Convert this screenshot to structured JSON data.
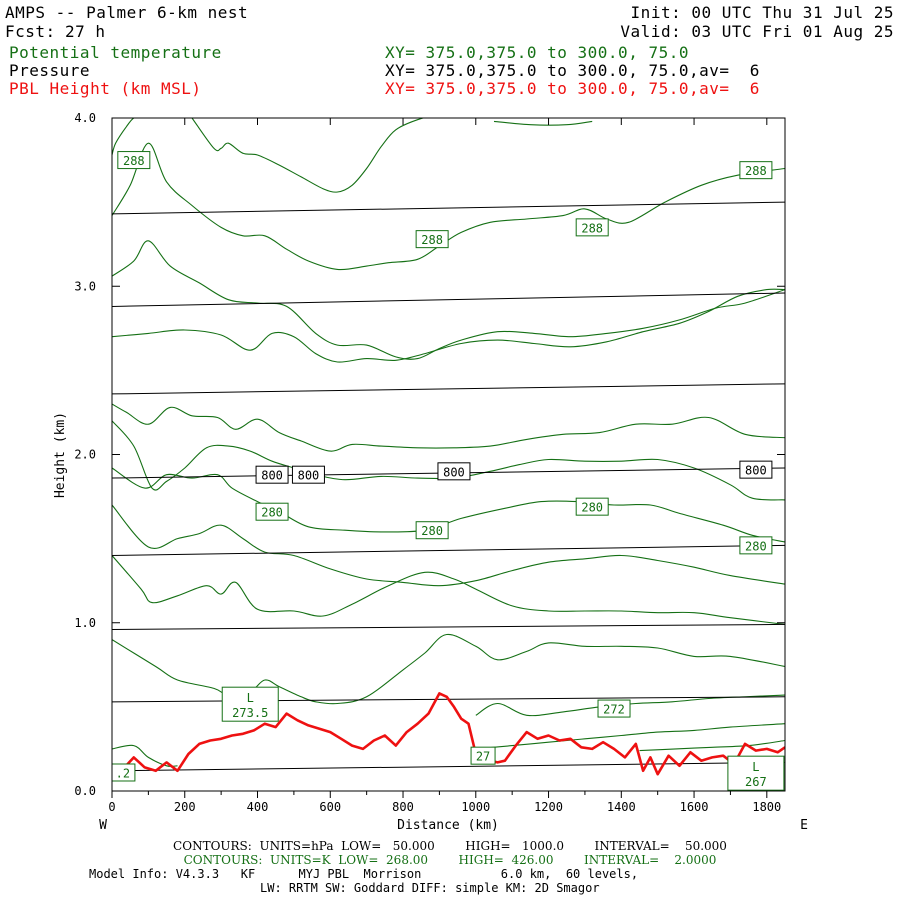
{
  "header": {
    "title": "AMPS -- Palmer 6-km nest",
    "fcst_label": "Fcst:",
    "fcst_value": "27 h",
    "init": "Init: 00 UTC Thu 31 Jul 25",
    "valid": "Valid: 03 UTC Fri 01 Aug 25",
    "field1": "Potential temperature",
    "field1_xy": "XY= 375.0,375.0 to 300.0, 75.0",
    "field2": "Pressure",
    "field2_xy": "XY= 375.0,375.0 to 300.0, 75.0,av=  6",
    "field3": "PBL Height (km MSL)",
    "field3_xy": "XY= 375.0,375.0 to 300.0, 75.0,av=  6"
  },
  "colors": {
    "theta": "#157015",
    "pressure": "#000000",
    "pbl": "#ee1111"
  },
  "chart_data": {
    "type": "line",
    "xlabel": "Distance (km)",
    "ylabel": "Height (km)",
    "xlim": [
      0,
      1850
    ],
    "ylim": [
      0.0,
      4.0
    ],
    "x_ticks": [
      "0",
      "200",
      "400",
      "600",
      "800",
      "1000",
      "1200",
      "1400",
      "1600",
      "1800"
    ],
    "y_ticks": [
      "0.0",
      "1.0",
      "2.0",
      "3.0",
      "4.0"
    ],
    "left_end_label": "W",
    "right_end_label": "E",
    "grid": false,
    "pressure_isobars": [
      {
        "y": [
          0.12,
          0.17
        ]
      },
      {
        "y": [
          0.53,
          0.56
        ]
      },
      {
        "y": [
          0.96,
          0.99
        ]
      },
      {
        "y": [
          1.4,
          1.46
        ]
      },
      {
        "y": [
          1.86,
          1.92
        ]
      },
      {
        "y": [
          2.36,
          2.42
        ]
      },
      {
        "y": [
          2.88,
          2.96
        ]
      },
      {
        "y": [
          3.43,
          3.5
        ]
      }
    ],
    "theta_contours": [
      {
        "x": [
          0,
          120,
          180,
          280,
          320,
          380,
          420,
          460,
          520,
          560,
          620,
          700,
          800,
          860,
          920,
          1000,
          1060,
          1140,
          1200,
          1300,
          1400,
          1500,
          1600,
          1700,
          1850
        ],
        "y": [
          0.9,
          0.74,
          0.66,
          0.61,
          0.57,
          0.59,
          0.66,
          0.62,
          0.56,
          0.53,
          0.52,
          0.56,
          0.72,
          0.82,
          0.93,
          0.86,
          0.78,
          0.83,
          0.88,
          0.86,
          0.86,
          0.85,
          0.8,
          0.8,
          0.74
        ]
      },
      {
        "x": [
          0,
          80,
          110,
          180,
          260,
          300,
          340,
          400,
          500,
          580,
          660,
          760,
          860,
          940,
          1000,
          1100,
          1200,
          1300,
          1400,
          1500,
          1600,
          1700,
          1850
        ],
        "y": [
          1.4,
          1.2,
          1.12,
          1.16,
          1.22,
          1.17,
          1.24,
          1.08,
          1.07,
          1.04,
          1.11,
          1.22,
          1.3,
          1.26,
          1.2,
          1.1,
          1.07,
          1.07,
          1.07,
          1.06,
          1.06,
          1.03,
          0.99
        ]
      },
      {
        "x": [
          0,
          100,
          180,
          240,
          300,
          360,
          420,
          500,
          600,
          700,
          800,
          900,
          1000,
          1100,
          1200,
          1300,
          1400,
          1500,
          1600,
          1700,
          1850
        ],
        "y": [
          1.7,
          1.45,
          1.5,
          1.53,
          1.58,
          1.5,
          1.42,
          1.4,
          1.32,
          1.26,
          1.24,
          1.22,
          1.25,
          1.31,
          1.36,
          1.38,
          1.4,
          1.37,
          1.33,
          1.28,
          1.23
        ]
      },
      {
        "x": [
          0,
          90,
          150,
          220,
          290,
          330,
          400,
          460,
          540,
          640,
          740,
          860,
          960,
          1080,
          1180,
          1280,
          1380,
          1480,
          1560,
          1680,
          1760,
          1850
        ],
        "y": [
          1.92,
          1.8,
          1.88,
          1.86,
          1.88,
          1.8,
          1.72,
          1.66,
          1.57,
          1.55,
          1.54,
          1.55,
          1.62,
          1.68,
          1.72,
          1.72,
          1.7,
          1.7,
          1.65,
          1.58,
          1.52,
          1.48
        ]
      },
      {
        "x": [
          0,
          60,
          110,
          150,
          200,
          260,
          320,
          380,
          440,
          500,
          560,
          640,
          740,
          840,
          940,
          1040,
          1120,
          1200,
          1300,
          1400,
          1500,
          1600,
          1700,
          1760,
          1850
        ],
        "y": [
          2.2,
          2.05,
          1.8,
          1.84,
          1.92,
          2.04,
          2.05,
          2.02,
          1.96,
          1.92,
          1.88,
          1.85,
          1.87,
          1.86,
          1.86,
          1.9,
          1.94,
          1.97,
          1.96,
          1.96,
          1.97,
          1.92,
          1.82,
          1.74,
          1.73
        ]
      },
      {
        "x": [
          0,
          40,
          100,
          160,
          220,
          290,
          340,
          400,
          460,
          520,
          600,
          660,
          740,
          840,
          940,
          1040,
          1140,
          1240,
          1340,
          1440,
          1540,
          1640,
          1740,
          1850
        ],
        "y": [
          2.3,
          2.25,
          2.18,
          2.28,
          2.23,
          2.22,
          2.15,
          2.21,
          2.13,
          2.08,
          2.02,
          2.06,
          2.05,
          2.04,
          2.04,
          2.05,
          2.09,
          2.12,
          2.13,
          2.18,
          2.18,
          2.22,
          2.12,
          2.1
        ]
      },
      {
        "x": [
          0,
          100,
          200,
          300,
          380,
          440,
          500,
          560,
          620,
          700,
          780,
          860,
          960,
          1060,
          1160,
          1260,
          1360,
          1460,
          1560,
          1640,
          1720,
          1800,
          1850
        ],
        "y": [
          2.7,
          2.72,
          2.74,
          2.71,
          2.62,
          2.72,
          2.7,
          2.6,
          2.55,
          2.57,
          2.56,
          2.6,
          2.66,
          2.68,
          2.66,
          2.64,
          2.67,
          2.73,
          2.78,
          2.85,
          2.94,
          2.98,
          2.98
        ]
      },
      {
        "x": [
          0,
          60,
          100,
          160,
          240,
          320,
          400,
          480,
          560,
          620,
          700,
          780,
          840,
          900,
          960,
          1060,
          1160,
          1260,
          1360,
          1460,
          1560,
          1660,
          1740,
          1850
        ],
        "y": [
          3.06,
          3.15,
          3.27,
          3.12,
          3.02,
          2.92,
          2.9,
          2.88,
          2.72,
          2.65,
          2.65,
          2.58,
          2.57,
          2.63,
          2.68,
          2.73,
          2.72,
          2.7,
          2.72,
          2.75,
          2.8,
          2.87,
          2.9,
          2.98
        ]
      },
      {
        "x": [
          0,
          50,
          100,
          150,
          220,
          300,
          360,
          420,
          480,
          540,
          620,
          700,
          760,
          840,
          900,
          960,
          1040,
          1140,
          1240,
          1300,
          1360,
          1420,
          1520,
          1620,
          1720,
          1850
        ],
        "y": [
          3.42,
          3.6,
          3.85,
          3.62,
          3.48,
          3.35,
          3.3,
          3.3,
          3.22,
          3.15,
          3.1,
          3.12,
          3.14,
          3.16,
          3.24,
          3.32,
          3.38,
          3.4,
          3.42,
          3.46,
          3.4,
          3.38,
          3.5,
          3.6,
          3.66,
          3.7
        ]
      },
      {
        "x": [
          220,
          280,
          300,
          320,
          360,
          400,
          460,
          520,
          580,
          620,
          660,
          700,
          740,
          780,
          840,
          900,
          960
        ],
        "y": [
          4.0,
          3.82,
          3.82,
          3.85,
          3.79,
          3.78,
          3.72,
          3.65,
          3.58,
          3.56,
          3.6,
          3.7,
          3.83,
          3.93,
          3.99,
          4.02,
          4.02
        ]
      },
      {
        "x": [
          1050,
          1150,
          1250,
          1320
        ],
        "y": [
          3.98,
          3.96,
          3.96,
          3.98
        ]
      },
      {
        "x": [
          0,
          10,
          40,
          60,
          80,
          110,
          180
        ],
        "y": [
          3.78,
          3.85,
          3.95,
          4.0,
          4.0,
          4.0,
          4.0
        ]
      },
      {
        "x": [
          0,
          60,
          100,
          150,
          180
        ],
        "y": [
          0.25,
          0.27,
          0.2,
          0.15,
          0.15
        ]
      },
      {
        "x": [
          1000,
          1060,
          1140,
          1240,
          1340,
          1440,
          1540,
          1640,
          1740,
          1850
        ],
        "y": [
          0.45,
          0.52,
          0.45,
          0.47,
          0.5,
          0.52,
          0.53,
          0.55,
          0.56,
          0.57
        ]
      },
      {
        "x": [
          1000,
          1100,
          1200,
          1300,
          1400,
          1500,
          1600,
          1700,
          1850
        ],
        "y": [
          0.25,
          0.27,
          0.29,
          0.31,
          0.33,
          0.35,
          0.36,
          0.38,
          0.4
        ]
      },
      {
        "x": [
          1450,
          1550,
          1650,
          1750,
          1850
        ],
        "y": [
          0.24,
          0.25,
          0.26,
          0.27,
          0.3
        ]
      }
    ],
    "pbl_height_x": [
      0,
      30,
      60,
      90,
      120,
      150,
      180,
      210,
      240,
      270,
      300,
      330,
      360,
      390,
      420,
      450,
      480,
      510,
      540,
      570,
      600,
      630,
      660,
      690,
      720,
      750,
      780,
      810,
      840,
      870,
      900,
      920,
      940,
      960,
      980,
      1000,
      1020,
      1040,
      1060,
      1080,
      1110,
      1140,
      1170,
      1200,
      1230,
      1260,
      1290,
      1320,
      1350,
      1380,
      1410,
      1440,
      1460,
      1480,
      1500,
      1530,
      1560,
      1590,
      1620,
      1650,
      1680,
      1710,
      1740,
      1770,
      1800,
      1830,
      1850
    ],
    "pbl_height_y": [
      0.15,
      0.13,
      0.2,
      0.14,
      0.12,
      0.17,
      0.12,
      0.22,
      0.28,
      0.3,
      0.31,
      0.33,
      0.34,
      0.36,
      0.4,
      0.38,
      0.46,
      0.42,
      0.39,
      0.37,
      0.35,
      0.31,
      0.27,
      0.25,
      0.3,
      0.33,
      0.27,
      0.35,
      0.4,
      0.46,
      0.58,
      0.56,
      0.5,
      0.43,
      0.4,
      0.22,
      0.2,
      0.18,
      0.17,
      0.18,
      0.27,
      0.35,
      0.31,
      0.33,
      0.3,
      0.31,
      0.26,
      0.25,
      0.29,
      0.25,
      0.2,
      0.28,
      0.12,
      0.2,
      0.1,
      0.21,
      0.15,
      0.23,
      0.18,
      0.2,
      0.21,
      0.16,
      0.28,
      0.24,
      0.25,
      0.23,
      0.26
    ],
    "contour_labels": [
      {
        "text": "288",
        "x": 60,
        "y": 3.75,
        "kind": "theta"
      },
      {
        "text": "288",
        "x": 880,
        "y": 3.28,
        "kind": "theta"
      },
      {
        "text": "288",
        "x": 1320,
        "y": 3.35,
        "kind": "theta"
      },
      {
        "text": "288",
        "x": 1770,
        "y": 3.69,
        "kind": "theta"
      },
      {
        "text": "280",
        "x": 440,
        "y": 1.66,
        "kind": "theta"
      },
      {
        "text": "280",
        "x": 880,
        "y": 1.55,
        "kind": "theta"
      },
      {
        "text": "280",
        "x": 1320,
        "y": 1.69,
        "kind": "theta"
      },
      {
        "text": "280",
        "x": 1770,
        "y": 1.46,
        "kind": "theta"
      },
      {
        "text": "272",
        "x": 1380,
        "y": 0.49,
        "kind": "theta"
      },
      {
        "text": "27",
        "x": 1020,
        "y": 0.21,
        "kind": "theta"
      },
      {
        "text": "800",
        "x": 440,
        "y": 1.88,
        "kind": "pressure"
      },
      {
        "text": "800",
        "x": 540,
        "y": 1.88,
        "kind": "pressure"
      },
      {
        "text": "800",
        "x": 940,
        "y": 1.9,
        "kind": "pressure"
      },
      {
        "text": "800",
        "x": 1770,
        "y": 1.91,
        "kind": "pressure"
      }
    ],
    "low_markers": [
      {
        "letter": "L",
        "value": "273.5",
        "x": 380,
        "y": 0.51
      },
      {
        "letter": "L",
        "value": "267",
        "x": 1770,
        "y": 0.1
      }
    ],
    "edge_fragments": [
      {
        "text": ".2",
        "x": 30,
        "y": 0.11
      }
    ]
  },
  "footer": {
    "contours1": "CONTOURS:  UNITS=hPa  LOW=   50.000        HIGH=   1000.0        INTERVAL=    50.000",
    "contours2": "CONTOURS:  UNITS=K  LOW=  268.00        HIGH=  426.00        INTERVAL=    2.0000",
    "model_info": "Model Info: V4.3.3   KF      MYJ PBL  Morrison           6.0 km,  60 levels,",
    "physics": "LW: RRTM SW: Goddard DIFF: simple KM: 2D Smagor"
  }
}
